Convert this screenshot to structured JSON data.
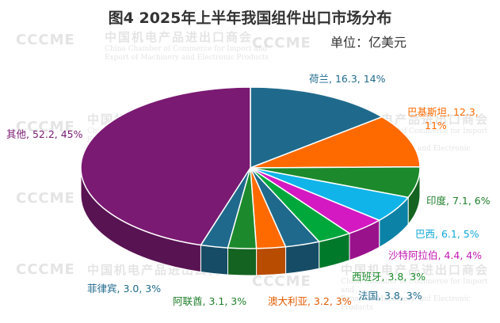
{
  "watermark": {
    "logo": "CCCME",
    "cn": "中国机电产品进出口商会",
    "en_line1": "China Chamber of Commerce for Import and",
    "en_line2": "Export of Machinery and Electronic Products"
  },
  "chart_data": {
    "type": "pie",
    "title": "图4   2025年上半年我国组件出口市场分布",
    "unit_label": "单位：亿美元",
    "slices": [
      {
        "name": "荷兰",
        "value": 16.3,
        "percent": 14,
        "label": "荷兰, 16.3, 14%",
        "color": "#1f6a8c",
        "text_color": "#1f6a8c"
      },
      {
        "name": "巴基斯坦",
        "value": 12.3,
        "percent": 11,
        "label": "巴基斯坦, 12.3, 11%",
        "color": "#ff6a00",
        "text_color": "#ff6a00"
      },
      {
        "name": "印度",
        "value": 7.1,
        "percent": 6,
        "label": "印度, 7.1, 6%",
        "color": "#1c8a2c",
        "text_color": "#1f7f2a"
      },
      {
        "name": "巴西",
        "value": 6.1,
        "percent": 5,
        "label": "巴西, 6.1, 5%",
        "color": "#10b4e8",
        "text_color": "#10a8d8"
      },
      {
        "name": "沙特阿拉伯",
        "value": 4.4,
        "percent": 4,
        "label": "沙特阿拉伯, 4.4, 4%",
        "color": "#d419c2",
        "text_color": "#c21ab0"
      },
      {
        "name": "西班牙",
        "value": 3.8,
        "percent": 3,
        "label": "西班牙, 3.8, 3%",
        "color": "#00a83c",
        "text_color": "#1c8a2c"
      },
      {
        "name": "法国",
        "value": 3.8,
        "percent": 3,
        "label": "法国, 3.8, 3%",
        "color": "#1f6a8c",
        "text_color": "#1f6a8c"
      },
      {
        "name": "澳大利亚",
        "value": 3.2,
        "percent": 3,
        "label": "澳大利亚, 3.2, 3%",
        "color": "#ff6a00",
        "text_color": "#e05a00"
      },
      {
        "name": "阿联酋",
        "value": 3.1,
        "percent": 3,
        "label": "阿联酋, 3.1, 3%",
        "color": "#1c8a2c",
        "text_color": "#1f7f2a"
      },
      {
        "name": "菲律宾",
        "value": 3.0,
        "percent": 3,
        "label": "菲律宾, 3.0, 3%",
        "color": "#1f6a8c",
        "text_color": "#1f6a8c"
      },
      {
        "name": "其他",
        "value": 52.2,
        "percent": 45,
        "label": "其他, 52.2, 45%",
        "color": "#7a1a72",
        "text_color": "#7a1a72"
      }
    ]
  }
}
